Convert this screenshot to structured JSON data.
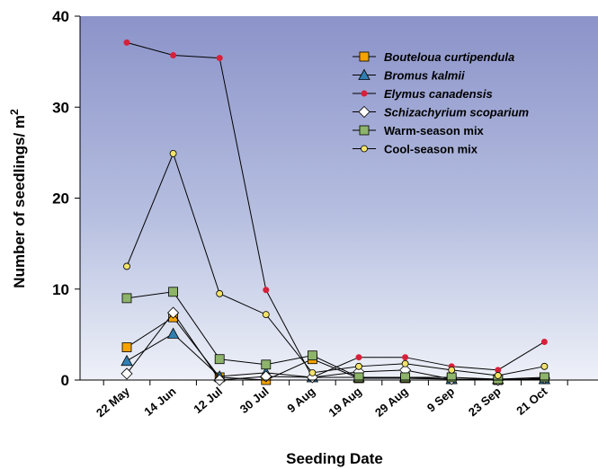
{
  "chart_data": {
    "type": "line",
    "xlabel": "Seeding Date",
    "ylabel": "Number of seedlings/ m",
    "ylabel_superscript": "2",
    "ylim": [
      0,
      40
    ],
    "yticks": [
      "0",
      "10",
      "20",
      "30",
      "40"
    ],
    "grid": false,
    "legend_position": "top-right",
    "categories": [
      "22 May",
      "14 Jun",
      "12 Jul",
      "30 Jul",
      "9 Aug",
      "19 Aug",
      "29 Aug",
      "9 Sep",
      "23 Sep",
      "21 Oct"
    ],
    "series": [
      {
        "name": "Bouteloua curtipendula",
        "italic": true,
        "marker": "square",
        "color": "#f5a300",
        "values": [
          3.6,
          6.9,
          0.3,
          0.0,
          2.3,
          0.2,
          0.2,
          0.1,
          0.0,
          0.1
        ]
      },
      {
        "name": "Bromus kalmii",
        "italic": true,
        "marker": "triangle",
        "color": "#2f7fb0",
        "values": [
          2.1,
          5.1,
          0.4,
          0.8,
          0.3,
          0.3,
          0.3,
          0.1,
          0.1,
          0.1
        ]
      },
      {
        "name": "Elymus canadensis",
        "italic": true,
        "marker": "dot",
        "color": "#d8203a",
        "values": [
          37.1,
          35.7,
          35.4,
          9.9,
          0.3,
          2.5,
          2.5,
          1.5,
          1.1,
          4.2
        ]
      },
      {
        "name": "Schizachyrium scoparium",
        "italic": true,
        "marker": "diamond",
        "color": "#ffffff",
        "values": [
          0.7,
          7.4,
          0.0,
          0.4,
          0.3,
          0.9,
          1.1,
          0.1,
          0.0,
          0.2
        ]
      },
      {
        "name": "Warm-season mix",
        "italic": false,
        "marker": "square",
        "color": "#8db46a",
        "values": [
          9.0,
          9.7,
          2.3,
          1.7,
          2.7,
          0.3,
          0.3,
          0.3,
          0.1,
          0.3
        ]
      },
      {
        "name": "Cool-season mix",
        "italic": false,
        "marker": "circle",
        "color": "#f4e36a",
        "values": [
          12.5,
          24.9,
          9.5,
          7.2,
          0.8,
          1.5,
          1.8,
          1.1,
          0.5,
          1.5
        ]
      }
    ]
  }
}
